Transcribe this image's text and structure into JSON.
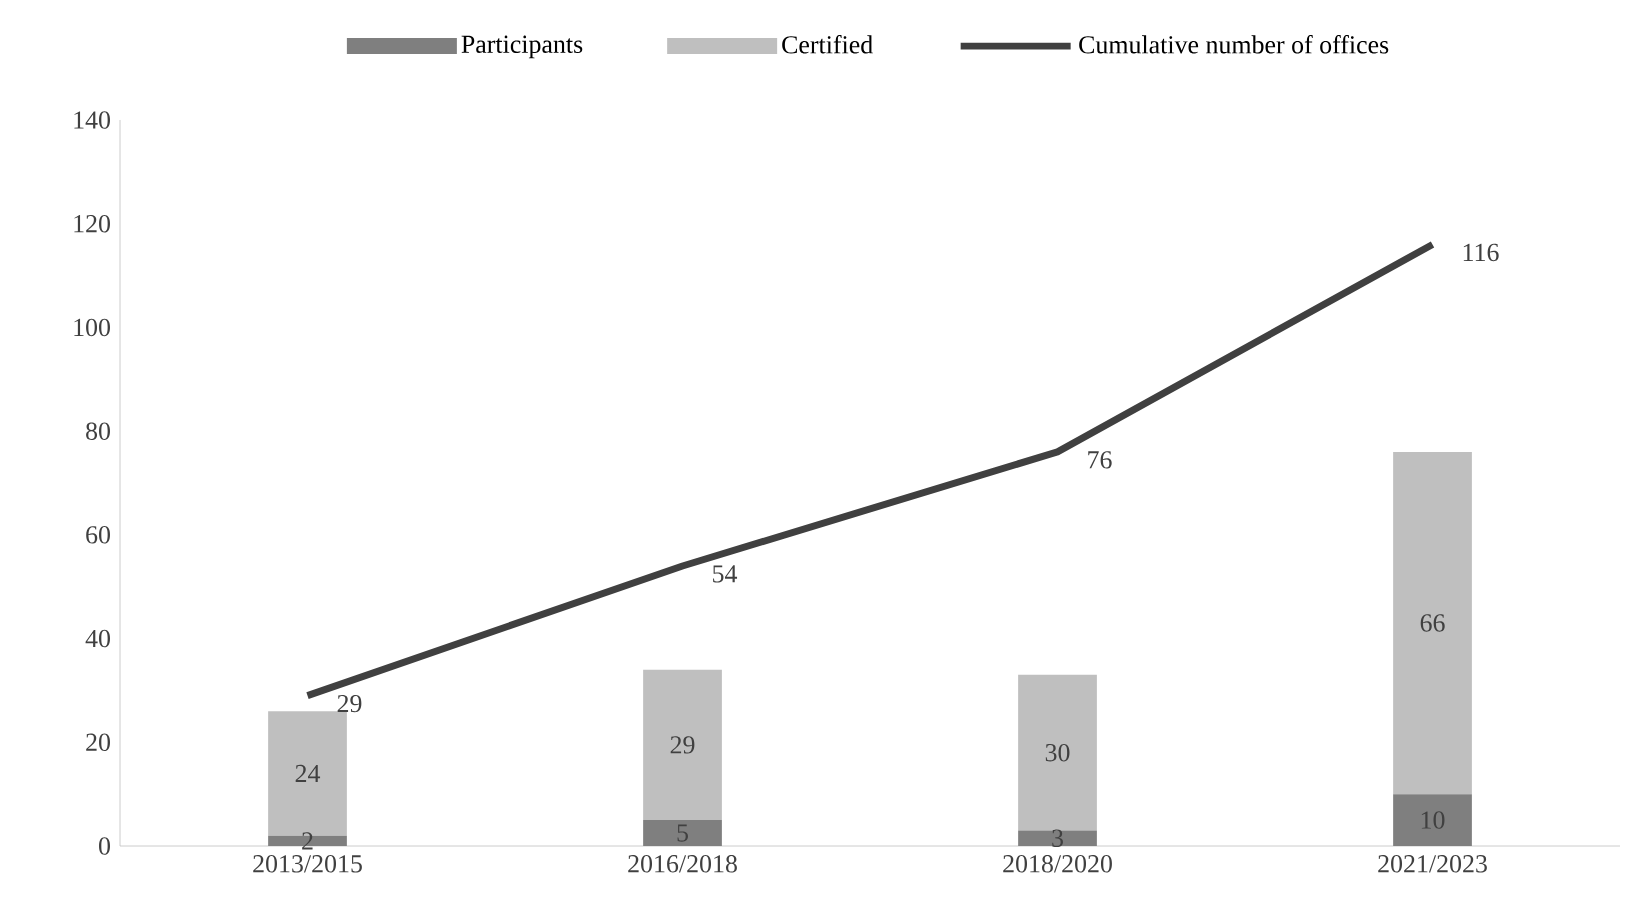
{
  "chart_data": {
    "type": "bar",
    "stacked": true,
    "data_labels": true,
    "legend": "top",
    "categories": [
      "2013/2015",
      "2016/2018",
      "2018/2020",
      "2021/2023"
    ],
    "ylim": [
      0,
      140
    ],
    "yticks": [
      0,
      20,
      40,
      60,
      80,
      100,
      120,
      140
    ],
    "series": [
      {
        "name": "Participants",
        "color": "#7f7f7f",
        "values": [
          2,
          5,
          3,
          10
        ]
      },
      {
        "name": "Certified",
        "color": "#bfbfbf",
        "values": [
          24,
          29,
          30,
          66
        ]
      },
      {
        "name": "Cumulative number of offices",
        "type": "line",
        "color": "#404040",
        "values": [
          29,
          54,
          76,
          116
        ]
      }
    ]
  }
}
